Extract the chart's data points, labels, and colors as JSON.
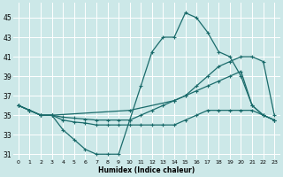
{
  "xlabel": "Humidex (Indice chaleur)",
  "bg_color": "#cce8e8",
  "line_color": "#1a6b6b",
  "grid_color": "#ffffff",
  "xlim": [
    -0.5,
    23.5
  ],
  "ylim": [
    30.5,
    46.5
  ],
  "yticks": [
    31,
    33,
    35,
    37,
    39,
    41,
    43,
    45
  ],
  "xticks": [
    0,
    1,
    2,
    3,
    4,
    5,
    6,
    7,
    8,
    9,
    10,
    11,
    12,
    13,
    14,
    15,
    16,
    17,
    18,
    19,
    20,
    21,
    22,
    23
  ],
  "lines": [
    {
      "x": [
        0,
        1,
        2,
        3,
        4,
        5,
        6,
        7,
        8,
        9,
        10,
        11,
        12,
        13,
        14,
        15,
        16,
        17,
        18,
        19,
        20,
        21,
        22,
        23
      ],
      "y": [
        36.0,
        35.5,
        35.0,
        35.0,
        33.5,
        32.5,
        31.5,
        31.0,
        31.0,
        31.0,
        34.5,
        38.0,
        41.5,
        43.0,
        43.0,
        45.5,
        45.0,
        43.5,
        41.5,
        41.0,
        39.0,
        36.0,
        35.0,
        34.5
      ]
    },
    {
      "x": [
        0,
        1,
        2,
        3,
        10,
        14,
        15,
        16,
        17,
        18,
        19,
        20,
        21,
        22,
        23
      ],
      "y": [
        36.0,
        35.5,
        35.0,
        35.0,
        35.5,
        36.5,
        37.0,
        38.0,
        39.0,
        40.0,
        40.5,
        41.0,
        41.0,
        40.5,
        35.0
      ]
    },
    {
      "x": [
        0,
        1,
        2,
        3,
        4,
        5,
        6,
        7,
        8,
        9,
        10,
        11,
        12,
        13,
        14,
        15,
        16,
        17,
        18,
        19,
        20,
        21,
        22,
        23
      ],
      "y": [
        36.0,
        35.5,
        35.0,
        35.0,
        34.8,
        34.7,
        34.6,
        34.5,
        34.5,
        34.5,
        34.5,
        35.0,
        35.5,
        36.0,
        36.5,
        37.0,
        37.5,
        38.0,
        38.5,
        39.0,
        39.5,
        36.0,
        35.0,
        34.5
      ]
    },
    {
      "x": [
        0,
        1,
        2,
        3,
        4,
        5,
        6,
        7,
        8,
        9,
        10,
        11,
        12,
        13,
        14,
        15,
        16,
        17,
        18,
        19,
        20,
        21,
        22,
        23
      ],
      "y": [
        36.0,
        35.5,
        35.0,
        35.0,
        34.5,
        34.3,
        34.2,
        34.0,
        34.0,
        34.0,
        34.0,
        34.0,
        34.0,
        34.0,
        34.0,
        34.5,
        35.0,
        35.5,
        35.5,
        35.5,
        35.5,
        35.5,
        35.0,
        34.5
      ]
    }
  ],
  "marker": "+",
  "markersize": 3,
  "linewidth": 0.9
}
